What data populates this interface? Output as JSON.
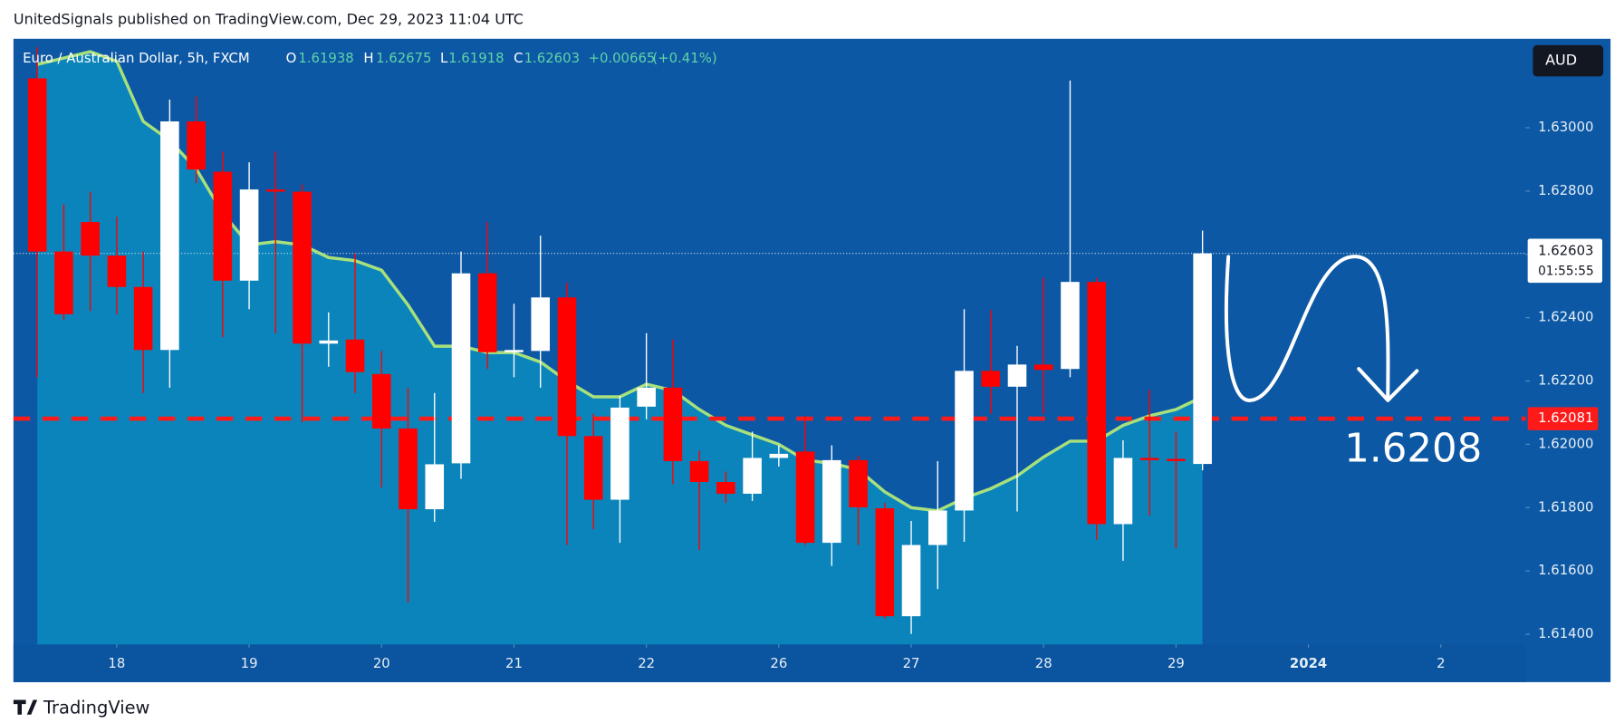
{
  "header": "UnitedSignals published on TradingView.com, Dec 29, 2023 11:04 UTC",
  "footer": "TradingView",
  "chart_data": {
    "type": "candlestick",
    "symbol": "Euro / Australian Dollar, 5h, FXCM",
    "legend": {
      "o_label": "O",
      "o": "1.61938",
      "h_label": "H",
      "h": "1.62675",
      "l_label": "L",
      "l": "1.61918",
      "c_label": "C",
      "c": "1.62603",
      "change": "+0.00665",
      "change_pct": "(+0.41%)"
    },
    "currency": "AUD",
    "last_price_label": "1.62603",
    "countdown": "01:55:55",
    "up_color": "#ffffff",
    "down_color": "#ff0000",
    "open": [
      1.63156,
      1.62609,
      1.62702,
      1.62596,
      1.62497,
      1.62298,
      1.6302,
      1.62861,
      1.62517,
      1.62805,
      1.62798,
      1.62318,
      1.62331,
      1.62222,
      1.6205,
      1.61795,
      1.6194,
      1.6254,
      1.62291,
      1.62295,
      1.62464,
      1.62026,
      1.61825,
      1.62119,
      1.62179,
      1.61947,
      1.61881,
      1.61844,
      1.61957,
      1.61977,
      1.61689,
      1.6195,
      1.61798,
      1.61457,
      1.61682,
      1.61791,
      1.62232,
      1.62182,
      1.62252,
      1.62238,
      1.62513,
      1.61748,
      1.61957,
      1.61954,
      1.61938
    ],
    "high": [
      1.63255,
      1.62758,
      1.62798,
      1.62719,
      1.62609,
      1.63089,
      1.63099,
      1.62924,
      1.62891,
      1.62924,
      1.62821,
      1.62417,
      1.62603,
      1.62295,
      1.62179,
      1.62162,
      1.62609,
      1.62702,
      1.62444,
      1.62659,
      1.6251,
      1.62096,
      1.62152,
      1.62351,
      1.62331,
      1.6198,
      1.61914,
      1.6204,
      1.61997,
      1.62089,
      1.61997,
      1.61964,
      1.61815,
      1.61758,
      1.61947,
      1.62427,
      1.62424,
      1.62311,
      1.62526,
      1.63149,
      1.62526,
      1.62013,
      1.62172,
      1.6204,
      1.62675
    ],
    "low": [
      1.62212,
      1.62394,
      1.62421,
      1.62411,
      1.62162,
      1.62179,
      1.62825,
      1.62338,
      1.62427,
      1.62351,
      1.6207,
      1.62245,
      1.62162,
      1.61864,
      1.615,
      1.61755,
      1.61891,
      1.62238,
      1.62212,
      1.62179,
      1.61682,
      1.61732,
      1.61689,
      1.62079,
      1.61874,
      1.61666,
      1.61815,
      1.61821,
      1.6193,
      1.61682,
      1.61616,
      1.61682,
      1.6145,
      1.61401,
      1.61543,
      1.61692,
      1.62096,
      1.61788,
      1.62096,
      1.62212,
      1.61699,
      1.61632,
      1.61775,
      1.61672,
      1.61918
    ],
    "close": [
      1.62609,
      1.62411,
      1.62596,
      1.62497,
      1.62298,
      1.6302,
      1.62868,
      1.62517,
      1.62805,
      1.62798,
      1.62318,
      1.62328,
      1.62228,
      1.6205,
      1.61795,
      1.61937,
      1.6254,
      1.62291,
      1.62298,
      1.62464,
      1.62026,
      1.61825,
      1.62116,
      1.62179,
      1.61947,
      1.61881,
      1.61844,
      1.61957,
      1.6197,
      1.61689,
      1.6195,
      1.61801,
      1.61457,
      1.61682,
      1.61791,
      1.62232,
      1.62182,
      1.62252,
      1.62235,
      1.62513,
      1.61748,
      1.61957,
      1.6195,
      1.61947,
      1.62603
    ],
    "ma": {
      "color": "#a8e07c",
      "area_color": "#0a84bb",
      "values": [
        1.632,
        1.6322,
        1.6324,
        1.6321,
        1.6302,
        1.6296,
        1.6287,
        1.6273,
        1.6263,
        1.6264,
        1.6263,
        1.6259,
        1.6258,
        1.6255,
        1.6244,
        1.6231,
        1.6231,
        1.6229,
        1.6229,
        1.6226,
        1.622,
        1.6215,
        1.6215,
        1.6219,
        1.6217,
        1.6211,
        1.6206,
        1.6203,
        1.62,
        1.6195,
        1.6194,
        1.6192,
        1.6185,
        1.618,
        1.6179,
        1.6183,
        1.6186,
        1.619,
        1.6196,
        1.6201,
        1.6201,
        1.6206,
        1.6209,
        1.6211,
        1.6215
      ]
    },
    "hline": {
      "value": 1.62081,
      "label": "1.62081",
      "color": "#ff1a1a"
    },
    "annotation": "1.6208",
    "xlim": [
      -0.9,
      56.2
    ],
    "xticks": [
      {
        "value": 3,
        "label": "18"
      },
      {
        "value": 8,
        "label": "19"
      },
      {
        "value": 13,
        "label": "20"
      },
      {
        "value": 18,
        "label": "21"
      },
      {
        "value": 23,
        "label": "22"
      },
      {
        "value": 28,
        "label": "26"
      },
      {
        "value": 33,
        "label": "27"
      },
      {
        "value": 38,
        "label": "28"
      },
      {
        "value": 43,
        "label": "29"
      },
      {
        "value": 48,
        "label": "2024"
      },
      {
        "value": 53,
        "label": "2"
      }
    ],
    "ylim": [
      1.61368,
      1.63281
    ],
    "yticks": [
      {
        "value": 1.614,
        "label": "1.61400"
      },
      {
        "value": 1.616,
        "label": "1.61600"
      },
      {
        "value": 1.618,
        "label": "1.61800"
      },
      {
        "value": 1.62,
        "label": "1.62000"
      },
      {
        "value": 1.622,
        "label": "1.62200"
      },
      {
        "value": 1.624,
        "label": "1.62400"
      },
      {
        "value": 1.626,
        "label": "1.62600"
      },
      {
        "value": 1.628,
        "label": "1.62800"
      },
      {
        "value": 1.63,
        "label": "1.63000"
      }
    ],
    "grid": false
  }
}
